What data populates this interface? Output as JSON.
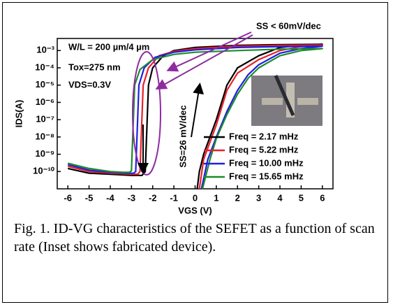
{
  "chart_data": {
    "type": "line",
    "y_label": "IDS(A)",
    "x_label": "VGS (V)",
    "annotations": [
      "W/L = 200 µm/4 µm",
      "Tox=275 nm",
      "VDS=0.3V",
      "SS < 60mV/dec",
      "SS=26 mV/dec"
    ],
    "xlim": [
      -6.5,
      6.5
    ],
    "xticks": [
      -6,
      -5,
      -4,
      -3,
      -2,
      -1,
      0,
      1,
      2,
      3,
      4,
      5,
      6
    ],
    "ylim": [
      1e-11,
      0.005
    ],
    "log_y": true,
    "yticks": [
      {
        "value": 1e-10,
        "label": "10⁻¹⁰"
      },
      {
        "value": 1e-09,
        "label": "10⁻⁹"
      },
      {
        "value": 1e-08,
        "label": "10⁻⁸"
      },
      {
        "value": 1e-07,
        "label": "10⁻⁷"
      },
      {
        "value": 1e-06,
        "label": "10⁻⁶"
      },
      {
        "value": 1e-05,
        "label": "10⁻⁵"
      },
      {
        "value": 0.0001,
        "label": "10⁻⁴"
      },
      {
        "value": 0.001,
        "label": "10⁻³"
      }
    ],
    "legend": "lower right",
    "series": [
      {
        "name": "Freq = 2.17 mHz",
        "color": "#000000",
        "x": [
          -6,
          -5,
          -4,
          -3,
          -2.5,
          -2.35,
          -2.2,
          -2,
          -1.5,
          -1,
          0,
          2,
          4,
          6,
          5,
          4,
          3,
          2,
          1.5,
          1,
          0.7,
          0.4,
          0.2,
          0.1
        ],
        "values": [
          1.5e-10,
          8e-11,
          7e-11,
          6e-11,
          6e-11,
          1e-10,
          1e-05,
          0.0001,
          0.0005,
          0.001,
          0.0015,
          0.002,
          0.0022,
          0.0023,
          0.002,
          0.0015,
          0.0005,
          0.0001,
          1e-05,
          1e-07,
          1e-08,
          1e-09,
          1e-10,
          1e-11
        ]
      },
      {
        "name": "Freq = 5.22 mHz",
        "color": "#e8202a",
        "x": [
          -6,
          -5,
          -4,
          -3,
          -2.7,
          -2.6,
          -2.45,
          -2.2,
          -1.7,
          -1,
          0,
          2,
          4,
          6,
          5,
          4,
          3,
          2,
          1.5,
          1,
          0.7,
          0.4,
          0.2
        ],
        "values": [
          2e-10,
          1e-10,
          8e-11,
          7e-11,
          7e-11,
          1e-10,
          1e-05,
          0.0001,
          0.0005,
          0.0009,
          0.0013,
          0.0018,
          0.002,
          0.0021,
          0.0017,
          0.001,
          0.0003,
          5e-05,
          5e-06,
          5e-08,
          5e-09,
          5e-10,
          1e-11
        ]
      },
      {
        "name": "Freq = 10.00 mHz",
        "color": "#1f1fe0",
        "x": [
          -6,
          -5,
          -4,
          -3.2,
          -2.9,
          -2.8,
          -2.65,
          -2.4,
          -1.9,
          -1,
          0,
          2,
          4,
          6,
          5,
          4,
          3,
          2.5,
          2,
          1.5,
          1,
          0.6,
          0.3
        ],
        "values": [
          2.5e-10,
          1.2e-10,
          9e-11,
          8e-11,
          8e-11,
          1e-10,
          1e-05,
          0.0001,
          0.0004,
          0.0008,
          0.0011,
          0.0015,
          0.0017,
          0.0018,
          0.0013,
          0.0007,
          0.00015,
          4e-05,
          5e-06,
          3e-07,
          1e-08,
          5e-10,
          1e-11
        ]
      },
      {
        "name": "Freq = 15.65 mHz",
        "color": "#1e8a2e",
        "x": [
          -6,
          -5,
          -4,
          -3.4,
          -3.1,
          -3,
          -2.85,
          -2.6,
          -2,
          -1,
          0,
          2,
          4,
          6,
          5,
          4,
          3,
          2.5,
          2,
          1.5,
          1,
          0.7,
          0.35
        ],
        "values": [
          3e-10,
          1.5e-10,
          1e-10,
          9e-11,
          9e-11,
          1.1e-10,
          1e-05,
          8e-05,
          0.0003,
          0.0006,
          0.0008,
          0.001,
          0.0012,
          0.0013,
          0.001,
          0.0005,
          0.0001,
          2.5e-05,
          3e-06,
          2e-07,
          8e-09,
          5e-10,
          1e-11
        ]
      }
    ]
  },
  "caption": "Fig. 1. ID-VG characteristics of the SEFET as a function of scan rate (Inset shows fabricated device)."
}
